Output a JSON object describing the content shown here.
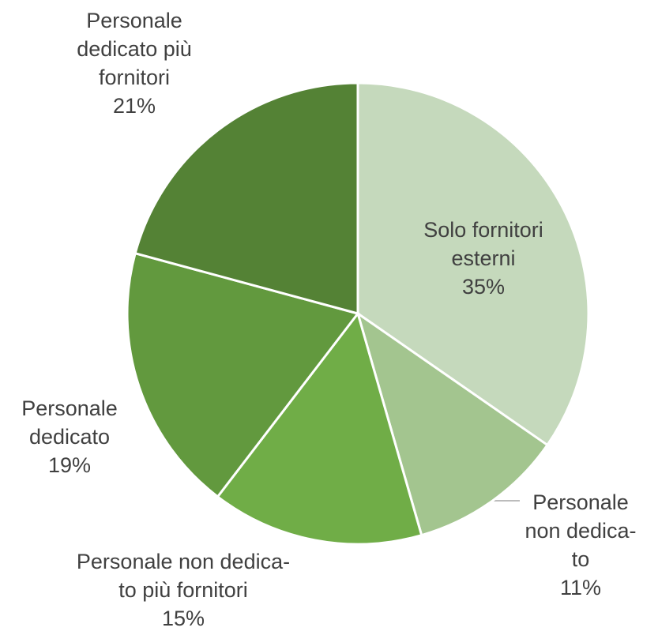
{
  "chart_data": {
    "type": "pie",
    "categories": [
      "Solo fornitori\nesterni",
      "Personale\nnon dedica-\nto",
      "Personale non dedica-\nto più fornitori",
      "Personale\ndedicato",
      "Personale\ndedicato più\nfornitori"
    ],
    "values": [
      35,
      11,
      15,
      19,
      21
    ],
    "value_labels": [
      "35%",
      "11%",
      "15%",
      "19%",
      "21%"
    ],
    "colors": [
      "#c5d9bc",
      "#a3c58f",
      "#70ad47",
      "#62993e",
      "#548235"
    ]
  }
}
